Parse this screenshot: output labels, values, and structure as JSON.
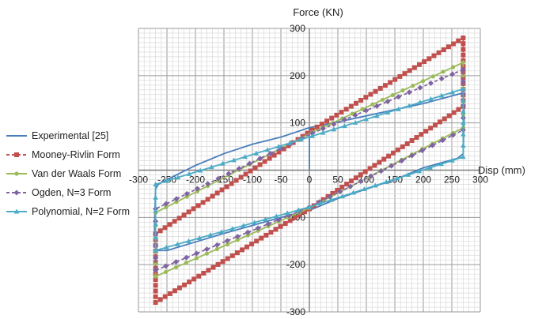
{
  "chart_data": {
    "type": "line",
    "title": "",
    "xlabel": "Disp (mm)",
    "ylabel": "Force (KN)",
    "xlim": [
      -300,
      300
    ],
    "ylim": [
      -300,
      300
    ],
    "x_ticks": [
      -300,
      -250,
      -200,
      -150,
      -100,
      -50,
      0,
      50,
      100,
      150,
      200,
      250,
      300
    ],
    "y_ticks": [
      -300,
      -200,
      -100,
      0,
      100,
      200,
      300
    ],
    "grid": true,
    "legend_position": "left",
    "series": [
      {
        "name": "Experimental [25]",
        "color": "#4a7ebb",
        "marker": "none",
        "dash": "solid",
        "x": [
          0,
          0,
          0,
          50,
          100,
          150,
          200,
          265,
          270,
          272,
          270,
          260,
          200,
          150,
          100,
          50,
          0,
          -50,
          -100,
          -150,
          -200,
          -250,
          -265,
          -270,
          -272,
          -270,
          -265,
          -250,
          -200,
          -150,
          -100,
          -50,
          0,
          5,
          10
        ],
        "y": [
          0,
          75,
          90,
          102,
          115,
          128,
          141,
          162,
          165,
          120,
          35,
          25,
          5,
          -20,
          -40,
          -60,
          -85,
          -100,
          -117,
          -134,
          -152,
          -170,
          -170,
          -165,
          -120,
          -40,
          -30,
          -20,
          10,
          35,
          55,
          70,
          90,
          82,
          80
        ]
      },
      {
        "name": "Mooney-Rivlin Form",
        "color": "#c0504d",
        "marker": "square",
        "dash": "dashed",
        "x": [
          5,
          270,
          270,
          0,
          -270,
          -270,
          5
        ],
        "y": [
          85,
          280,
          135,
          -82,
          -280,
          -135,
          85
        ]
      },
      {
        "name": "Van der Waals Form",
        "color": "#9bbb59",
        "marker": "circle",
        "dash": "solid",
        "x": [
          5,
          270,
          270,
          0,
          -270,
          -270,
          5
        ],
        "y": [
          80,
          228,
          90,
          -80,
          -225,
          -90,
          80
        ]
      },
      {
        "name": "Ogden, N=3 Form",
        "color": "#8064a2",
        "marker": "diamond",
        "dash": "dashed",
        "x": [
          5,
          270,
          270,
          0,
          -270,
          -270,
          5
        ],
        "y": [
          78,
          213,
          85,
          -78,
          -212,
          -82,
          78
        ]
      },
      {
        "name": "Polynomial, N=2 Form",
        "color": "#4bacc6",
        "marker": "triangle",
        "dash": "solid",
        "x": [
          5,
          270,
          270,
          0,
          -270,
          -270,
          5
        ],
        "y": [
          72,
          172,
          28,
          -78,
          -170,
          -30,
          72
        ]
      }
    ]
  }
}
